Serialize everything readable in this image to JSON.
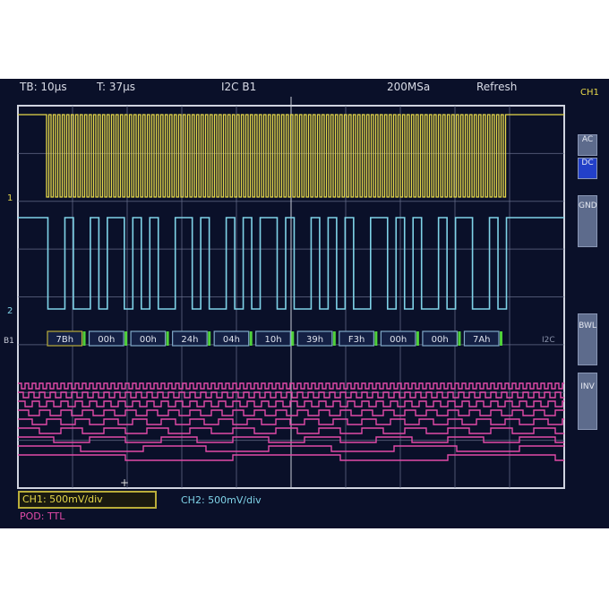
{
  "header": {
    "timebase": "TB: 10µs",
    "trigger_time": "T: 37µs",
    "protocol": "I2C B1",
    "sample_rate": "200MSa",
    "mode": "Refresh"
  },
  "side_menu": {
    "channel": "CH1",
    "items": [
      {
        "label": "AC",
        "active": false
      },
      {
        "label": "DC",
        "active": true
      },
      {
        "label": "GND",
        "active": false
      },
      {
        "label": "BWL",
        "active": false
      },
      {
        "label": "INV",
        "active": false
      }
    ]
  },
  "bus": {
    "label": "B1",
    "decoded": [
      "7Bh",
      "00h",
      "00h",
      "24h",
      "04h",
      "10h",
      "39h",
      "F3h",
      "00h",
      "00h",
      "7Ah"
    ],
    "end_label": "I2C"
  },
  "status": {
    "ch1": "CH1: 500mV/div",
    "ch2": "CH2: 500mV/div",
    "pod": "POD: TTL"
  },
  "colors": {
    "ch1": "#e6d84a",
    "ch2": "#7fd3e8",
    "pod": "#e24aa8",
    "background": "#0a1029",
    "grid": "#6b7390",
    "bus_ack": "#4fd13a"
  }
}
